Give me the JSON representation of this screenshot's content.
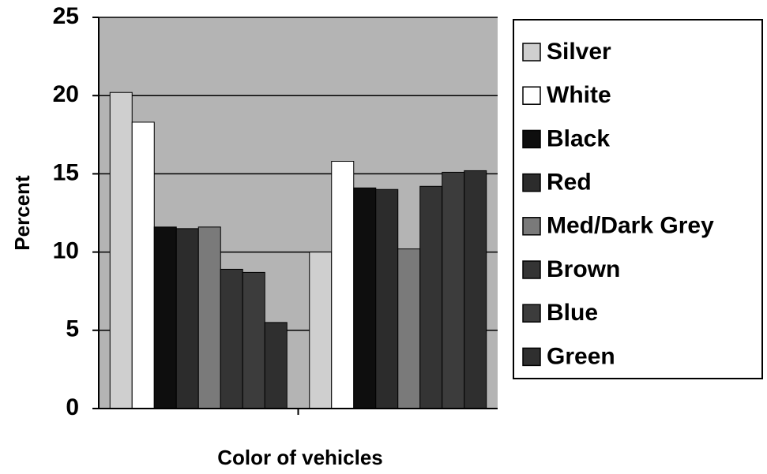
{
  "chart_data": {
    "type": "bar",
    "x_label": "Color of vehicles",
    "y_label": "Percent",
    "categories": [
      null,
      null
    ],
    "series": [
      {
        "name": "Silver",
        "color": "#cfcfcf",
        "values": [
          20.2,
          10.0
        ]
      },
      {
        "name": "White",
        "color": "#ffffff",
        "values": [
          18.3,
          15.8
        ]
      },
      {
        "name": "Black",
        "color": "#0e0e0e",
        "values": [
          11.6,
          14.1
        ]
      },
      {
        "name": "Red",
        "color": "#2c2c2c",
        "values": [
          11.5,
          14.0
        ]
      },
      {
        "name": "Med/Dark Grey",
        "color": "#7a7a7a",
        "values": [
          11.6,
          10.2
        ]
      },
      {
        "name": "Brown",
        "color": "#343434",
        "values": [
          8.9,
          14.2
        ]
      },
      {
        "name": "Blue",
        "color": "#3c3c3c",
        "values": [
          8.7,
          15.1
        ]
      },
      {
        "name": "Green",
        "color": "#2f2f2f",
        "values": [
          5.5,
          15.2
        ]
      }
    ],
    "ylim": [
      0,
      25
    ],
    "yticks": [
      0,
      5,
      10,
      15,
      20,
      25
    ],
    "grid": true,
    "legend": "right"
  }
}
